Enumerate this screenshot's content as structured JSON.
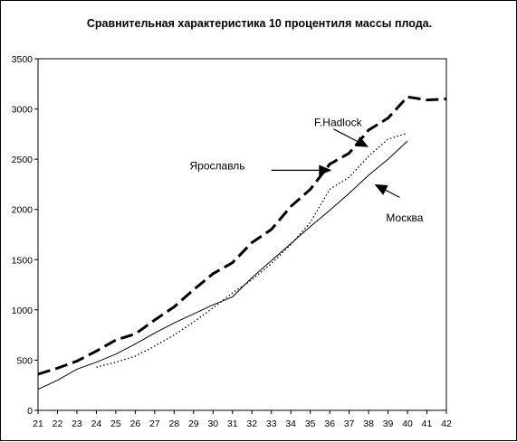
{
  "chart_data": {
    "type": "line",
    "title": "Сравнительная характеристика 10 процентиля массы плода.",
    "xlabel": "",
    "ylabel": "",
    "xlim": [
      21,
      42
    ],
    "ylim": [
      0,
      3500
    ],
    "x_ticks": [
      "21",
      "22",
      "23",
      "24",
      "25",
      "26",
      "27",
      "28",
      "29",
      "30",
      "31",
      "32",
      "33",
      "34",
      "35",
      "36",
      "37",
      "38",
      "39",
      "40",
      "41",
      "42"
    ],
    "y_ticks": [
      "0",
      "500",
      "1000",
      "1500",
      "2000",
      "2500",
      "3000",
      "3500"
    ],
    "grid": false,
    "series": [
      {
        "name": "Ярославль",
        "style": "dashed-thick",
        "points": [
          [
            21,
            360
          ],
          [
            22,
            420
          ],
          [
            23,
            490
          ],
          [
            24,
            590
          ],
          [
            25,
            700
          ],
          [
            26,
            760
          ],
          [
            27,
            900
          ],
          [
            28,
            1030
          ],
          [
            29,
            1200
          ],
          [
            30,
            1360
          ],
          [
            31,
            1470
          ],
          [
            32,
            1670
          ],
          [
            33,
            1800
          ],
          [
            34,
            2030
          ],
          [
            35,
            2200
          ],
          [
            36,
            2450
          ],
          [
            37,
            2560
          ],
          [
            38,
            2790
          ],
          [
            39,
            2910
          ],
          [
            40,
            3120
          ],
          [
            41,
            3090
          ],
          [
            42,
            3100
          ]
        ]
      },
      {
        "name": "F.Hadlock",
        "style": "dotted",
        "points": [
          [
            24,
            430
          ],
          [
            25,
            480
          ],
          [
            26,
            540
          ],
          [
            27,
            640
          ],
          [
            28,
            750
          ],
          [
            29,
            880
          ],
          [
            30,
            1020
          ],
          [
            31,
            1170
          ],
          [
            32,
            1300
          ],
          [
            33,
            1460
          ],
          [
            34,
            1650
          ],
          [
            35,
            1870
          ],
          [
            36,
            2200
          ],
          [
            37,
            2320
          ],
          [
            38,
            2530
          ],
          [
            39,
            2700
          ],
          [
            40,
            2760
          ]
        ]
      },
      {
        "name": "Москва",
        "style": "solid",
        "points": [
          [
            21,
            210
          ],
          [
            22,
            300
          ],
          [
            23,
            410
          ],
          [
            24,
            480
          ],
          [
            25,
            560
          ],
          [
            26,
            660
          ],
          [
            27,
            770
          ],
          [
            28,
            870
          ],
          [
            29,
            960
          ],
          [
            30,
            1050
          ],
          [
            31,
            1130
          ],
          [
            32,
            1320
          ],
          [
            33,
            1490
          ],
          [
            34,
            1660
          ],
          [
            35,
            1830
          ],
          [
            36,
            1990
          ],
          [
            37,
            2160
          ],
          [
            38,
            2340
          ],
          [
            39,
            2500
          ],
          [
            40,
            2680
          ]
        ]
      }
    ],
    "annotations": [
      {
        "text": "F.Hadlock",
        "arrow_from": [
          36.2,
          2800
        ],
        "arrow_to": [
          38.0,
          2620
        ],
        "label_at": [
          35.2,
          2830
        ]
      },
      {
        "text": "Ярославль",
        "arrow_from": [
          33.0,
          2390
        ],
        "arrow_to": [
          36.1,
          2390
        ],
        "label_at": [
          28.8,
          2400
        ]
      },
      {
        "text": "Москва",
        "arrow_from": [
          39.6,
          2120
        ],
        "arrow_to": [
          38.3,
          2250
        ],
        "label_at": [
          38.9,
          1880
        ]
      }
    ]
  }
}
